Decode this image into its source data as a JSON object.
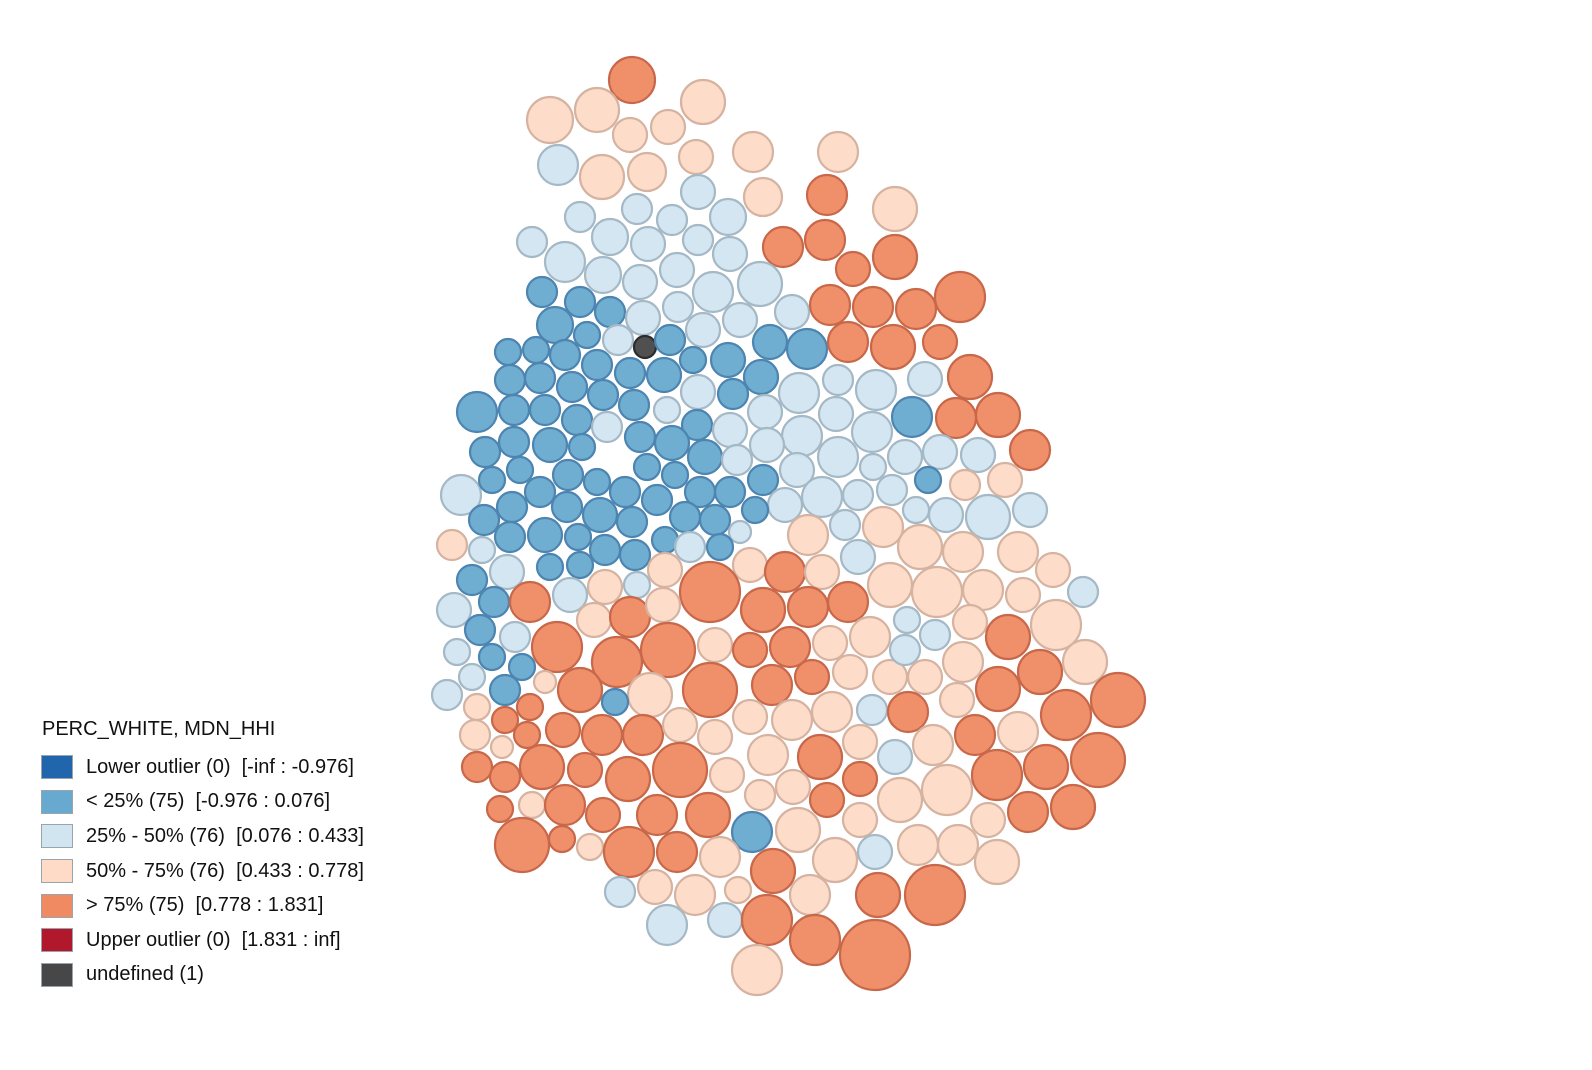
{
  "legend": {
    "title": "PERC_WHITE, MDN_HHI",
    "items": [
      {
        "label": "Lower outlier (0)  [-inf : -0.976]",
        "color": "#2166ac"
      },
      {
        "label": "< 25% (75)  [-0.976 : 0.076]",
        "color": "#67a9cf"
      },
      {
        "label": "25% - 50% (76)  [0.076 : 0.433]",
        "color": "#d1e5f0"
      },
      {
        "label": "50% - 75% (76)  [0.433 : 0.778]",
        "color": "#fddbc7"
      },
      {
        "label": "> 75% (75)  [0.778 : 1.831]",
        "color": "#ef8a62"
      },
      {
        "label": "Upper outlier (0)  [1.831 : inf]",
        "color": "#b2182b"
      },
      {
        "label": "undefined (1)",
        "color": "#474747"
      }
    ]
  },
  "map_style": {
    "fill_opacity": 0.95,
    "stroke_colors": {
      "1": "#4d84b0",
      "2": "#a4b8c6",
      "3": "#d6b2a0",
      "4": "#c8684a",
      "6": "#2c2c2c"
    }
  }
}
